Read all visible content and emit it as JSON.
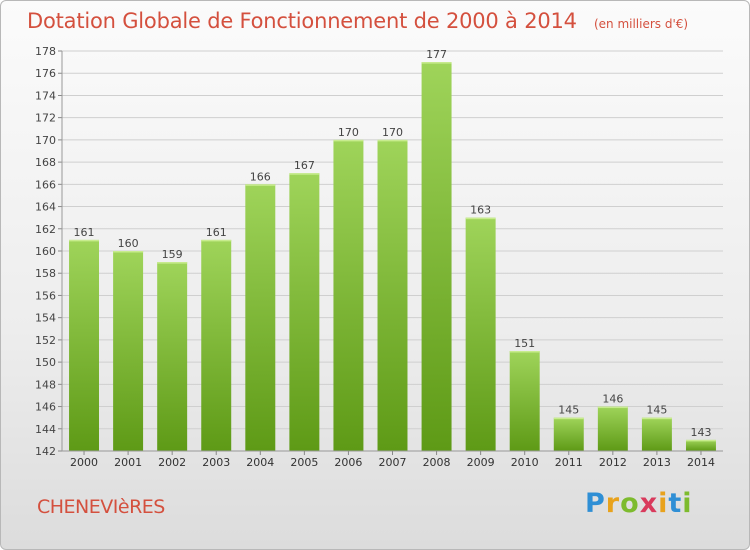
{
  "title": "Dotation Globale de Fonctionnement de 2000 à 2014",
  "unit_note": "(en milliers d'€)",
  "commune": "CHENEVIèRES",
  "logo": {
    "letters": [
      "P",
      "r",
      "o",
      "x",
      "i",
      "t",
      "i"
    ],
    "colors": [
      "#2f8fd5",
      "#e8a21c",
      "#7dbb2e",
      "#d93a5c",
      "#e8a21c",
      "#2f8fd5",
      "#7dbb2e"
    ]
  },
  "colors": {
    "bar_light": "#9fd45a",
    "bar_dark": "#5e9a16",
    "accent": "#d4503e"
  },
  "chart_data": {
    "type": "bar",
    "categories": [
      "2000",
      "2001",
      "2002",
      "2003",
      "2004",
      "2005",
      "2006",
      "2007",
      "2008",
      "2009",
      "2010",
      "2011",
      "2012",
      "2013",
      "2014"
    ],
    "values": [
      161,
      160,
      159,
      161,
      166,
      167,
      170,
      170,
      177,
      163,
      151,
      145,
      146,
      145,
      143
    ],
    "ylim": [
      142,
      178
    ],
    "yticks": [
      142,
      144,
      146,
      148,
      150,
      152,
      154,
      156,
      158,
      160,
      162,
      164,
      166,
      168,
      170,
      172,
      174,
      176,
      178
    ],
    "grid": true,
    "data_labels": true
  }
}
